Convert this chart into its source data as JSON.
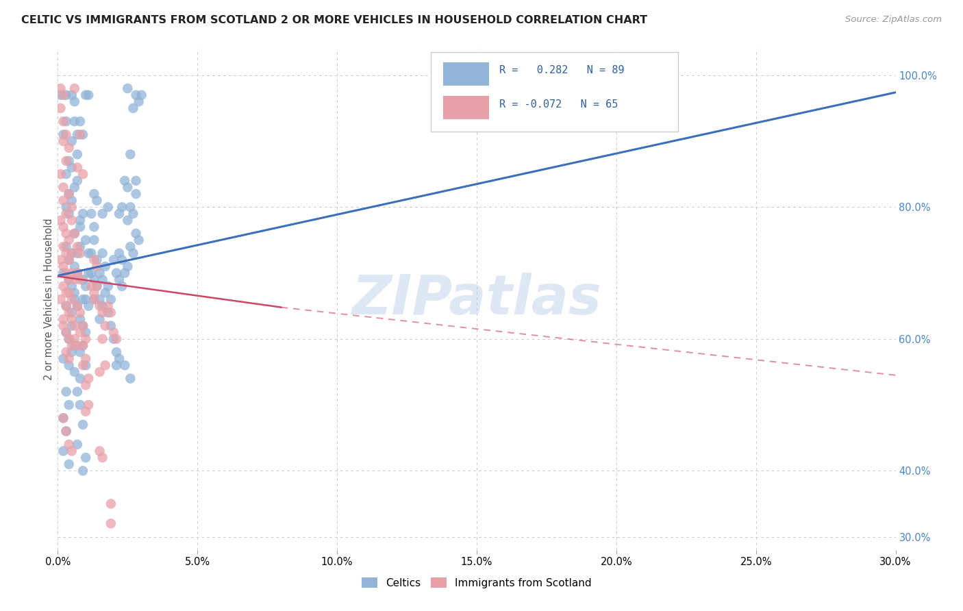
{
  "title": "CELTIC VS IMMIGRANTS FROM SCOTLAND 2 OR MORE VEHICLES IN HOUSEHOLD CORRELATION CHART",
  "source": "Source: ZipAtlas.com",
  "ylabel_label": "2 or more Vehicles in Household",
  "xmin": 0.0,
  "xmax": 0.3,
  "ymin": 0.28,
  "ymax": 1.04,
  "watermark": "ZIPatlas",
  "legend_blue_label": "Celtics",
  "legend_pink_label": "Immigrants from Scotland",
  "blue_color": "#92b4d7",
  "pink_color": "#e8a0a8",
  "blue_line_color": "#3a6fbb",
  "pink_line_color": "#cc4466",
  "blue_line": [
    0.0,
    0.696,
    0.3,
    0.974
  ],
  "pink_line_solid": [
    0.0,
    0.695,
    0.08,
    0.648
  ],
  "pink_line_dashed": [
    0.08,
    0.648,
    0.3,
    0.545
  ],
  "blue_scatter": [
    [
      0.001,
      0.97
    ],
    [
      0.003,
      0.97
    ],
    [
      0.005,
      0.97
    ],
    [
      0.003,
      0.93
    ],
    [
      0.006,
      0.96
    ],
    [
      0.002,
      0.91
    ],
    [
      0.005,
      0.9
    ],
    [
      0.004,
      0.87
    ],
    [
      0.003,
      0.85
    ],
    [
      0.005,
      0.86
    ],
    [
      0.007,
      0.88
    ],
    [
      0.004,
      0.82
    ],
    [
      0.006,
      0.83
    ],
    [
      0.007,
      0.84
    ],
    [
      0.003,
      0.8
    ],
    [
      0.004,
      0.79
    ],
    [
      0.005,
      0.81
    ],
    [
      0.006,
      0.76
    ],
    [
      0.008,
      0.78
    ],
    [
      0.003,
      0.74
    ],
    [
      0.005,
      0.73
    ],
    [
      0.004,
      0.72
    ],
    [
      0.006,
      0.71
    ],
    [
      0.007,
      0.73
    ],
    [
      0.008,
      0.74
    ],
    [
      0.002,
      0.7
    ],
    [
      0.004,
      0.69
    ],
    [
      0.005,
      0.68
    ],
    [
      0.006,
      0.67
    ],
    [
      0.007,
      0.7
    ],
    [
      0.009,
      0.69
    ],
    [
      0.003,
      0.65
    ],
    [
      0.005,
      0.64
    ],
    [
      0.006,
      0.66
    ],
    [
      0.007,
      0.65
    ],
    [
      0.008,
      0.63
    ],
    [
      0.009,
      0.66
    ],
    [
      0.003,
      0.61
    ],
    [
      0.004,
      0.6
    ],
    [
      0.005,
      0.62
    ],
    [
      0.006,
      0.59
    ],
    [
      0.002,
      0.57
    ],
    [
      0.004,
      0.56
    ],
    [
      0.005,
      0.58
    ],
    [
      0.006,
      0.55
    ],
    [
      0.003,
      0.52
    ],
    [
      0.004,
      0.5
    ],
    [
      0.002,
      0.48
    ],
    [
      0.003,
      0.46
    ],
    [
      0.002,
      0.43
    ],
    [
      0.004,
      0.41
    ],
    [
      0.008,
      0.77
    ],
    [
      0.009,
      0.79
    ],
    [
      0.01,
      0.75
    ],
    [
      0.011,
      0.73
    ],
    [
      0.01,
      0.68
    ],
    [
      0.011,
      0.7
    ],
    [
      0.01,
      0.66
    ],
    [
      0.011,
      0.65
    ],
    [
      0.009,
      0.62
    ],
    [
      0.01,
      0.61
    ],
    [
      0.009,
      0.59
    ],
    [
      0.008,
      0.58
    ],
    [
      0.01,
      0.56
    ],
    [
      0.008,
      0.54
    ],
    [
      0.007,
      0.52
    ],
    [
      0.008,
      0.5
    ],
    [
      0.009,
      0.47
    ],
    [
      0.007,
      0.44
    ],
    [
      0.01,
      0.42
    ],
    [
      0.009,
      0.4
    ],
    [
      0.012,
      0.79
    ],
    [
      0.013,
      0.77
    ],
    [
      0.012,
      0.73
    ],
    [
      0.013,
      0.75
    ],
    [
      0.012,
      0.7
    ],
    [
      0.013,
      0.69
    ],
    [
      0.014,
      0.72
    ],
    [
      0.015,
      0.7
    ],
    [
      0.014,
      0.68
    ],
    [
      0.015,
      0.66
    ],
    [
      0.013,
      0.66
    ],
    [
      0.015,
      0.63
    ],
    [
      0.016,
      0.73
    ],
    [
      0.017,
      0.71
    ],
    [
      0.016,
      0.69
    ],
    [
      0.017,
      0.67
    ],
    [
      0.016,
      0.65
    ],
    [
      0.018,
      0.68
    ],
    [
      0.019,
      0.66
    ],
    [
      0.018,
      0.64
    ],
    [
      0.02,
      0.72
    ],
    [
      0.021,
      0.7
    ],
    [
      0.022,
      0.73
    ],
    [
      0.023,
      0.72
    ],
    [
      0.022,
      0.69
    ],
    [
      0.023,
      0.68
    ],
    [
      0.025,
      0.71
    ],
    [
      0.024,
      0.7
    ],
    [
      0.026,
      0.74
    ],
    [
      0.027,
      0.73
    ],
    [
      0.028,
      0.76
    ],
    [
      0.029,
      0.75
    ],
    [
      0.026,
      0.8
    ],
    [
      0.028,
      0.82
    ],
    [
      0.025,
      0.78
    ],
    [
      0.027,
      0.79
    ],
    [
      0.024,
      0.84
    ],
    [
      0.025,
      0.83
    ],
    [
      0.021,
      0.58
    ],
    [
      0.022,
      0.57
    ],
    [
      0.02,
      0.6
    ],
    [
      0.019,
      0.62
    ],
    [
      0.028,
      0.97
    ],
    [
      0.029,
      0.96
    ],
    [
      0.025,
      0.98
    ],
    [
      0.027,
      0.95
    ],
    [
      0.026,
      0.88
    ],
    [
      0.028,
      0.84
    ],
    [
      0.024,
      0.56
    ],
    [
      0.026,
      0.54
    ],
    [
      0.022,
      0.79
    ],
    [
      0.023,
      0.8
    ],
    [
      0.013,
      0.82
    ],
    [
      0.014,
      0.81
    ],
    [
      0.016,
      0.79
    ],
    [
      0.018,
      0.8
    ],
    [
      0.006,
      0.93
    ],
    [
      0.007,
      0.91
    ],
    [
      0.008,
      0.93
    ],
    [
      0.009,
      0.91
    ],
    [
      0.01,
      0.97
    ],
    [
      0.011,
      0.97
    ],
    [
      0.03,
      0.97
    ],
    [
      0.021,
      0.56
    ]
  ],
  "pink_scatter": [
    [
      0.001,
      0.98
    ],
    [
      0.002,
      0.97
    ],
    [
      0.001,
      0.95
    ],
    [
      0.002,
      0.93
    ],
    [
      0.002,
      0.9
    ],
    [
      0.003,
      0.91
    ],
    [
      0.004,
      0.89
    ],
    [
      0.003,
      0.87
    ],
    [
      0.001,
      0.85
    ],
    [
      0.002,
      0.83
    ],
    [
      0.002,
      0.81
    ],
    [
      0.003,
      0.79
    ],
    [
      0.004,
      0.82
    ],
    [
      0.005,
      0.8
    ],
    [
      0.001,
      0.78
    ],
    [
      0.002,
      0.77
    ],
    [
      0.003,
      0.76
    ],
    [
      0.004,
      0.75
    ],
    [
      0.005,
      0.78
    ],
    [
      0.006,
      0.76
    ],
    [
      0.002,
      0.74
    ],
    [
      0.003,
      0.73
    ],
    [
      0.004,
      0.72
    ],
    [
      0.005,
      0.73
    ],
    [
      0.001,
      0.72
    ],
    [
      0.002,
      0.71
    ],
    [
      0.003,
      0.7
    ],
    [
      0.004,
      0.69
    ],
    [
      0.005,
      0.7
    ],
    [
      0.006,
      0.69
    ],
    [
      0.002,
      0.68
    ],
    [
      0.003,
      0.67
    ],
    [
      0.004,
      0.67
    ],
    [
      0.005,
      0.66
    ],
    [
      0.001,
      0.66
    ],
    [
      0.003,
      0.65
    ],
    [
      0.004,
      0.64
    ],
    [
      0.005,
      0.63
    ],
    [
      0.002,
      0.63
    ],
    [
      0.006,
      0.62
    ],
    [
      0.002,
      0.62
    ],
    [
      0.003,
      0.61
    ],
    [
      0.004,
      0.6
    ],
    [
      0.005,
      0.59
    ],
    [
      0.006,
      0.6
    ],
    [
      0.007,
      0.59
    ],
    [
      0.003,
      0.58
    ],
    [
      0.004,
      0.57
    ],
    [
      0.007,
      0.74
    ],
    [
      0.008,
      0.73
    ],
    [
      0.007,
      0.7
    ],
    [
      0.008,
      0.69
    ],
    [
      0.007,
      0.65
    ],
    [
      0.008,
      0.64
    ],
    [
      0.008,
      0.61
    ],
    [
      0.009,
      0.62
    ],
    [
      0.009,
      0.59
    ],
    [
      0.01,
      0.6
    ],
    [
      0.009,
      0.56
    ],
    [
      0.01,
      0.57
    ],
    [
      0.01,
      0.53
    ],
    [
      0.011,
      0.54
    ],
    [
      0.011,
      0.5
    ],
    [
      0.01,
      0.49
    ],
    [
      0.012,
      0.68
    ],
    [
      0.013,
      0.67
    ],
    [
      0.014,
      0.68
    ],
    [
      0.013,
      0.66
    ],
    [
      0.015,
      0.65
    ],
    [
      0.016,
      0.64
    ],
    [
      0.016,
      0.6
    ],
    [
      0.017,
      0.62
    ],
    [
      0.015,
      0.43
    ],
    [
      0.016,
      0.42
    ],
    [
      0.015,
      0.55
    ],
    [
      0.017,
      0.56
    ],
    [
      0.002,
      0.48
    ],
    [
      0.003,
      0.46
    ],
    [
      0.004,
      0.44
    ],
    [
      0.005,
      0.43
    ],
    [
      0.019,
      0.35
    ],
    [
      0.019,
      0.32
    ],
    [
      0.02,
      0.61
    ],
    [
      0.021,
      0.6
    ],
    [
      0.006,
      0.98
    ],
    [
      0.008,
      0.91
    ],
    [
      0.007,
      0.86
    ],
    [
      0.009,
      0.85
    ],
    [
      0.018,
      0.65
    ],
    [
      0.019,
      0.64
    ],
    [
      0.013,
      0.72
    ],
    [
      0.014,
      0.71
    ]
  ]
}
